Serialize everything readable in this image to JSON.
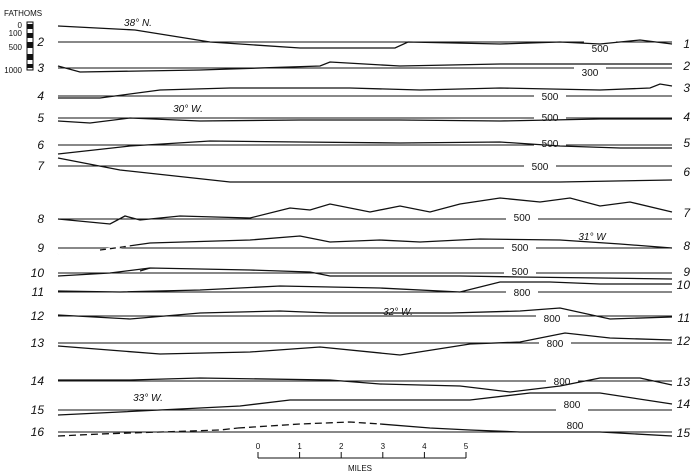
{
  "scale_legend": {
    "title": "FATHOMS",
    "ticks": [
      "0",
      "100",
      "500",
      "1000"
    ]
  },
  "distance_scale": {
    "ticks": [
      "0",
      "1",
      "2",
      "3",
      "4",
      "5"
    ],
    "unit": "MILES"
  },
  "left_labels": [
    "2",
    "3",
    "4",
    "5",
    "6",
    "7",
    "8",
    "9",
    "10",
    "11",
    "12",
    "13",
    "14",
    "15",
    "16"
  ],
  "right_labels": [
    "1",
    "2",
    "3",
    "4",
    "5",
    "6",
    "7",
    "8",
    "9",
    "10",
    "11",
    "12",
    "13",
    "14",
    "15"
  ],
  "depth_labels": [
    "500",
    "300",
    "500",
    "500",
    "500",
    "500",
    "500",
    "500",
    "500",
    "800",
    "800",
    "800",
    "800",
    "800",
    "800"
  ],
  "position_labels": [
    "38° N.",
    "30° W.",
    "31° W",
    "32° W.",
    "33° W."
  ],
  "colors": {
    "ink": "#111111",
    "background": "#ffffff"
  }
}
